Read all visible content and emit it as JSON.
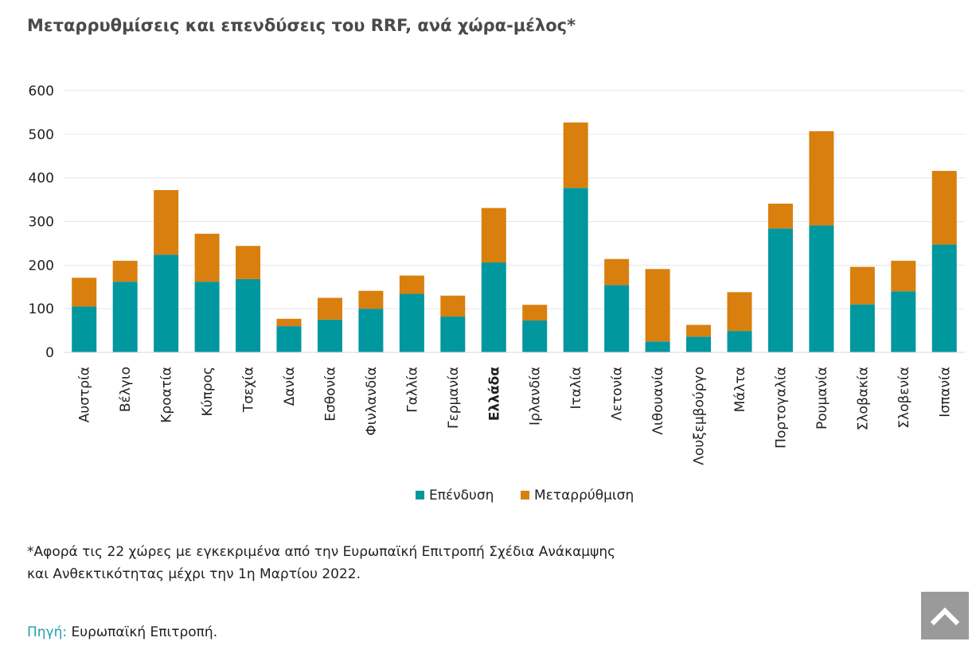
{
  "title": "Μεταρρυθμίσεις και επενδύσεις του RRF, ανά χώρα-μέλος*",
  "footnote": {
    "line1": "*Αφορά τις 22 χώρες με εγκεκριμένα από την Ευρωπαϊκή Επιτροπή Σχέδια Ανάκαμψης",
    "line2": "και Ανθεκτικότητας μέχρι την 1η Μαρτίου 2022."
  },
  "source": {
    "label": "Πηγή:",
    "text": "Ευρωπαϊκή Επιτροπή."
  },
  "scroll_top_icon": "chevron-up-icon",
  "chart_data": {
    "type": "bar",
    "stacked": true,
    "title": "Μεταρρυθμίσεις και επενδύσεις του RRF, ανά χώρα-μέλος*",
    "xlabel": "",
    "ylabel": "",
    "ylim": [
      0,
      600
    ],
    "yticks": [
      0,
      100,
      200,
      300,
      400,
      500,
      600
    ],
    "grid": true,
    "legend_position": "bottom-center",
    "categories": [
      "Αυστρία",
      "Βέλγιο",
      "Κροατία",
      "Κύπρος",
      "Τσεχία",
      "Δανία",
      "Εσθονία",
      "Φινλανδία",
      "Γαλλία",
      "Γερμανία",
      "Ελλάδα",
      "Ιρλανδία",
      "Ιταλία",
      "Λετονία",
      "Λιθουανία",
      "Λουξεμβούργο",
      "Μάλτα",
      "Πορτογαλία",
      "Ρουμανία",
      "Σλοβακία",
      "Σλοβενία",
      "Ισπανία"
    ],
    "highlight_category": "Ελλάδα",
    "series": [
      {
        "name": "Επένδυση",
        "color": "#00979f",
        "values": [
          105,
          162,
          224,
          162,
          168,
          60,
          75,
          100,
          134,
          82,
          206,
          73,
          377,
          154,
          25,
          36,
          49,
          284,
          291,
          110,
          140,
          247
        ]
      },
      {
        "name": "Μεταρρύθμιση",
        "color": "#d97f0e",
        "values": [
          66,
          48,
          148,
          110,
          76,
          17,
          50,
          41,
          42,
          48,
          125,
          36,
          150,
          60,
          166,
          27,
          89,
          57,
          216,
          86,
          70,
          169
        ]
      }
    ]
  }
}
